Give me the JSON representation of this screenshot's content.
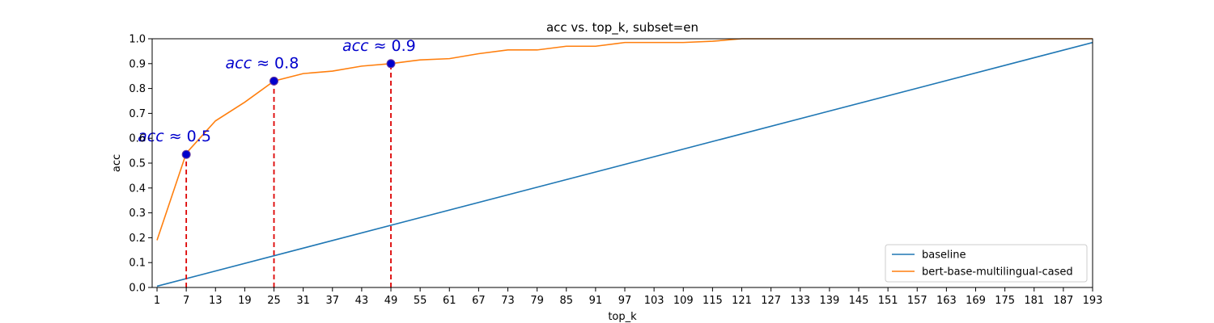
{
  "chart_data": {
    "type": "line",
    "title": "acc vs. top_k, subset=en",
    "xlabel": "top_k",
    "ylabel": "acc",
    "xlim": [
      0,
      193
    ],
    "ylim": [
      0.0,
      1.0
    ],
    "xticks": [
      1,
      7,
      13,
      19,
      25,
      31,
      37,
      43,
      49,
      55,
      61,
      67,
      73,
      79,
      85,
      91,
      97,
      103,
      109,
      115,
      121,
      127,
      133,
      139,
      145,
      151,
      157,
      163,
      169,
      175,
      181,
      187,
      193
    ],
    "yticks": [
      0.0,
      0.1,
      0.2,
      0.3,
      0.4,
      0.5,
      0.6,
      0.7,
      0.8,
      0.9,
      1.0
    ],
    "grid": false,
    "legend_position": "lower-right",
    "series": [
      {
        "name": "baseline",
        "color": "#1f77b4",
        "x": [
          1,
          193
        ],
        "y": [
          0.005,
          0.985
        ]
      },
      {
        "name": "bert-base-multilingual-cased",
        "color": "#ff7f0e",
        "x": [
          1,
          7,
          13,
          19,
          25,
          31,
          37,
          43,
          49,
          55,
          61,
          67,
          73,
          79,
          85,
          91,
          97,
          103,
          109,
          115,
          121,
          127,
          133,
          139,
          145,
          151,
          157,
          163,
          169,
          175,
          181,
          187,
          193
        ],
        "y": [
          0.19,
          0.54,
          0.67,
          0.745,
          0.83,
          0.86,
          0.87,
          0.89,
          0.9,
          0.915,
          0.92,
          0.94,
          0.955,
          0.955,
          0.97,
          0.97,
          0.985,
          0.985,
          0.985,
          0.99,
          1.0,
          1.0,
          1.0,
          1.0,
          1.0,
          1.0,
          1.0,
          1.0,
          1.0,
          1.0,
          1.0,
          1.0,
          1.0
        ]
      }
    ],
    "annotations": [
      {
        "x": 7,
        "y": 0.535,
        "var": "acc",
        "text": " ≈ 0.5"
      },
      {
        "x": 25,
        "y": 0.83,
        "var": "acc",
        "text": " ≈ 0.8"
      },
      {
        "x": 49,
        "y": 0.9,
        "var": "acc",
        "text": " ≈ 0.9"
      }
    ],
    "annotation_marker_color": "#0000cc",
    "annotation_line_color": "#dd0000"
  }
}
